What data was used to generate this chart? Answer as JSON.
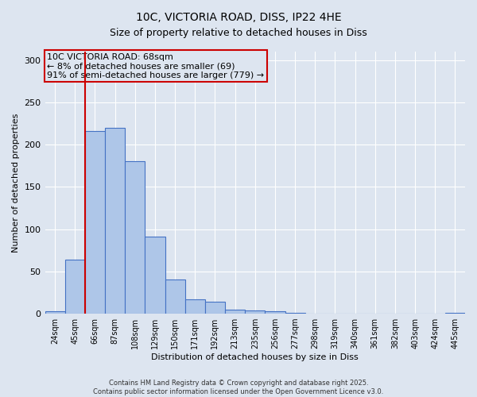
{
  "title_line1": "10C, VICTORIA ROAD, DISS, IP22 4HE",
  "title_line2": "Size of property relative to detached houses in Diss",
  "xlabel": "Distribution of detached houses by size in Diss",
  "ylabel": "Number of detached properties",
  "categories": [
    "24sqm",
    "45sqm",
    "66sqm",
    "87sqm",
    "108sqm",
    "129sqm",
    "150sqm",
    "171sqm",
    "192sqm",
    "213sqm",
    "235sqm",
    "256sqm",
    "277sqm",
    "298sqm",
    "319sqm",
    "340sqm",
    "361sqm",
    "382sqm",
    "403sqm",
    "424sqm",
    "445sqm"
  ],
  "values": [
    3,
    64,
    216,
    220,
    180,
    91,
    40,
    17,
    14,
    5,
    4,
    3,
    1,
    0,
    0,
    0,
    0,
    0,
    0,
    0,
    1
  ],
  "bar_color": "#aec6e8",
  "bar_edge_color": "#4472c4",
  "bar_width": 1.0,
  "vline_index": 2,
  "vline_color": "#cc0000",
  "annotation_line1": "10C VICTORIA ROAD: 68sqm",
  "annotation_line2": "← 8% of detached houses are smaller (69)",
  "annotation_line3": "91% of semi-detached houses are larger (779) →",
  "annotation_box_color": "#cc0000",
  "ylim": [
    0,
    310
  ],
  "yticks": [
    0,
    50,
    100,
    150,
    200,
    250,
    300
  ],
  "background_color": "#dde5f0",
  "footer_line1": "Contains HM Land Registry data © Crown copyright and database right 2025.",
  "footer_line2": "Contains public sector information licensed under the Open Government Licence v3.0.",
  "grid_color": "#ffffff",
  "title_fontsize": 10,
  "axis_label_fontsize": 8,
  "tick_fontsize": 7,
  "annotation_fontsize": 8,
  "footer_fontsize": 6
}
